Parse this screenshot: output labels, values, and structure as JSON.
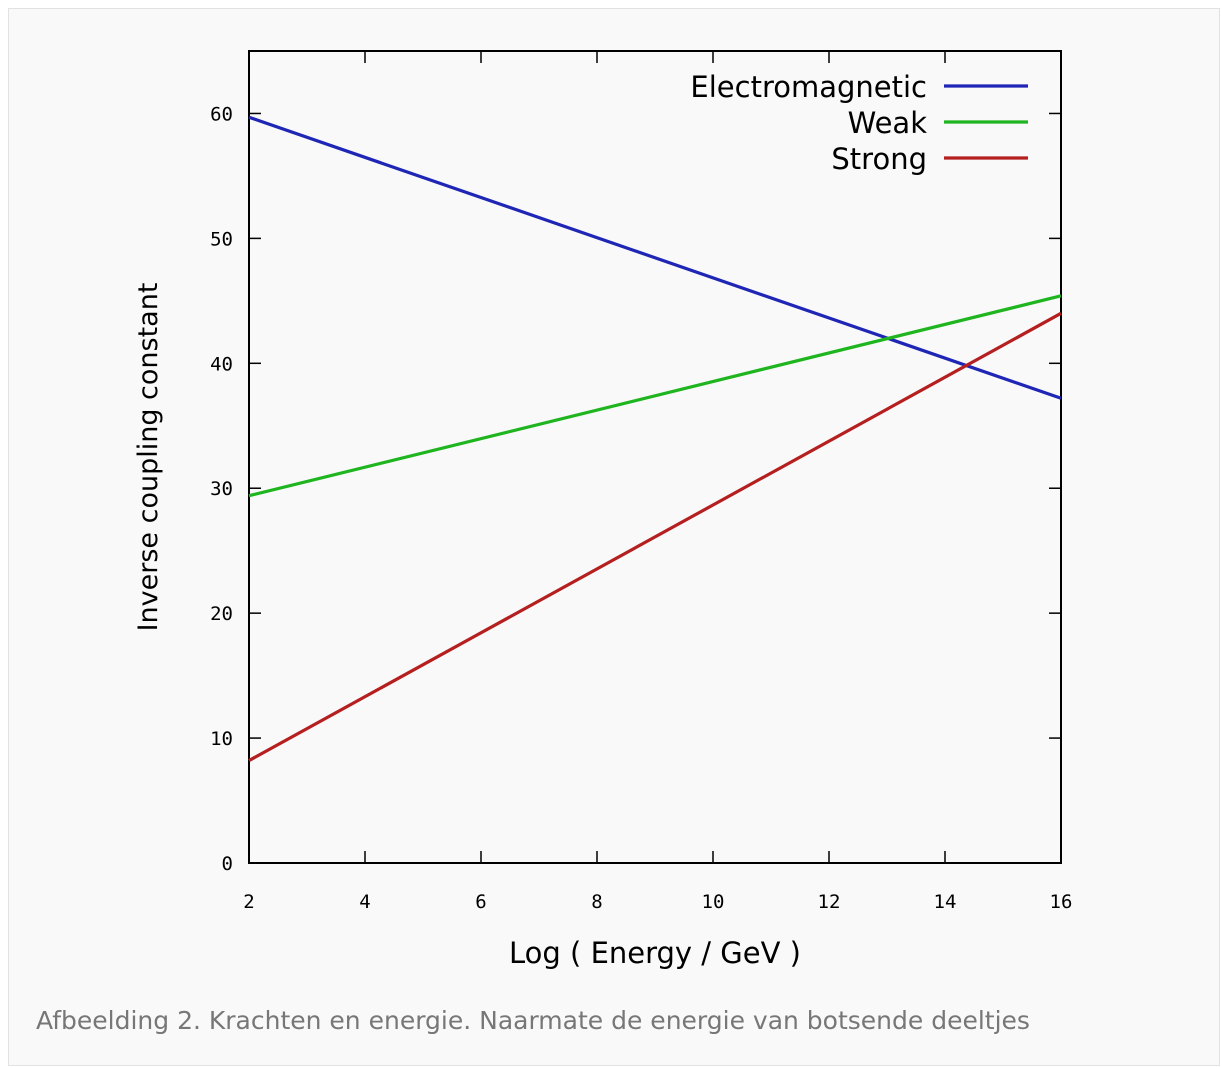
{
  "caption": "Afbeelding 2. Krachten en energie. Naarmate de energie van botsende deeltjes",
  "chart_data": {
    "type": "line",
    "title": "",
    "xlabel": "Log ( Energy / GeV )",
    "ylabel": "Inverse coupling constant",
    "xlim": [
      2,
      16
    ],
    "ylim": [
      0,
      65
    ],
    "xticks": [
      2,
      4,
      6,
      8,
      10,
      12,
      14,
      16
    ],
    "yticks": [
      0,
      10,
      20,
      30,
      40,
      50,
      60
    ],
    "grid": false,
    "legend_position": "top-right",
    "series": [
      {
        "name": "Electromagnetic",
        "color": "#1f26b5",
        "x": [
          2,
          16
        ],
        "y": [
          59.7,
          37.2
        ]
      },
      {
        "name": "Weak",
        "color": "#1fb51f",
        "x": [
          2,
          16
        ],
        "y": [
          29.4,
          45.4
        ]
      },
      {
        "name": "Strong",
        "color": "#b51f1f",
        "x": [
          2,
          16
        ],
        "y": [
          8.2,
          44.0
        ]
      }
    ]
  }
}
